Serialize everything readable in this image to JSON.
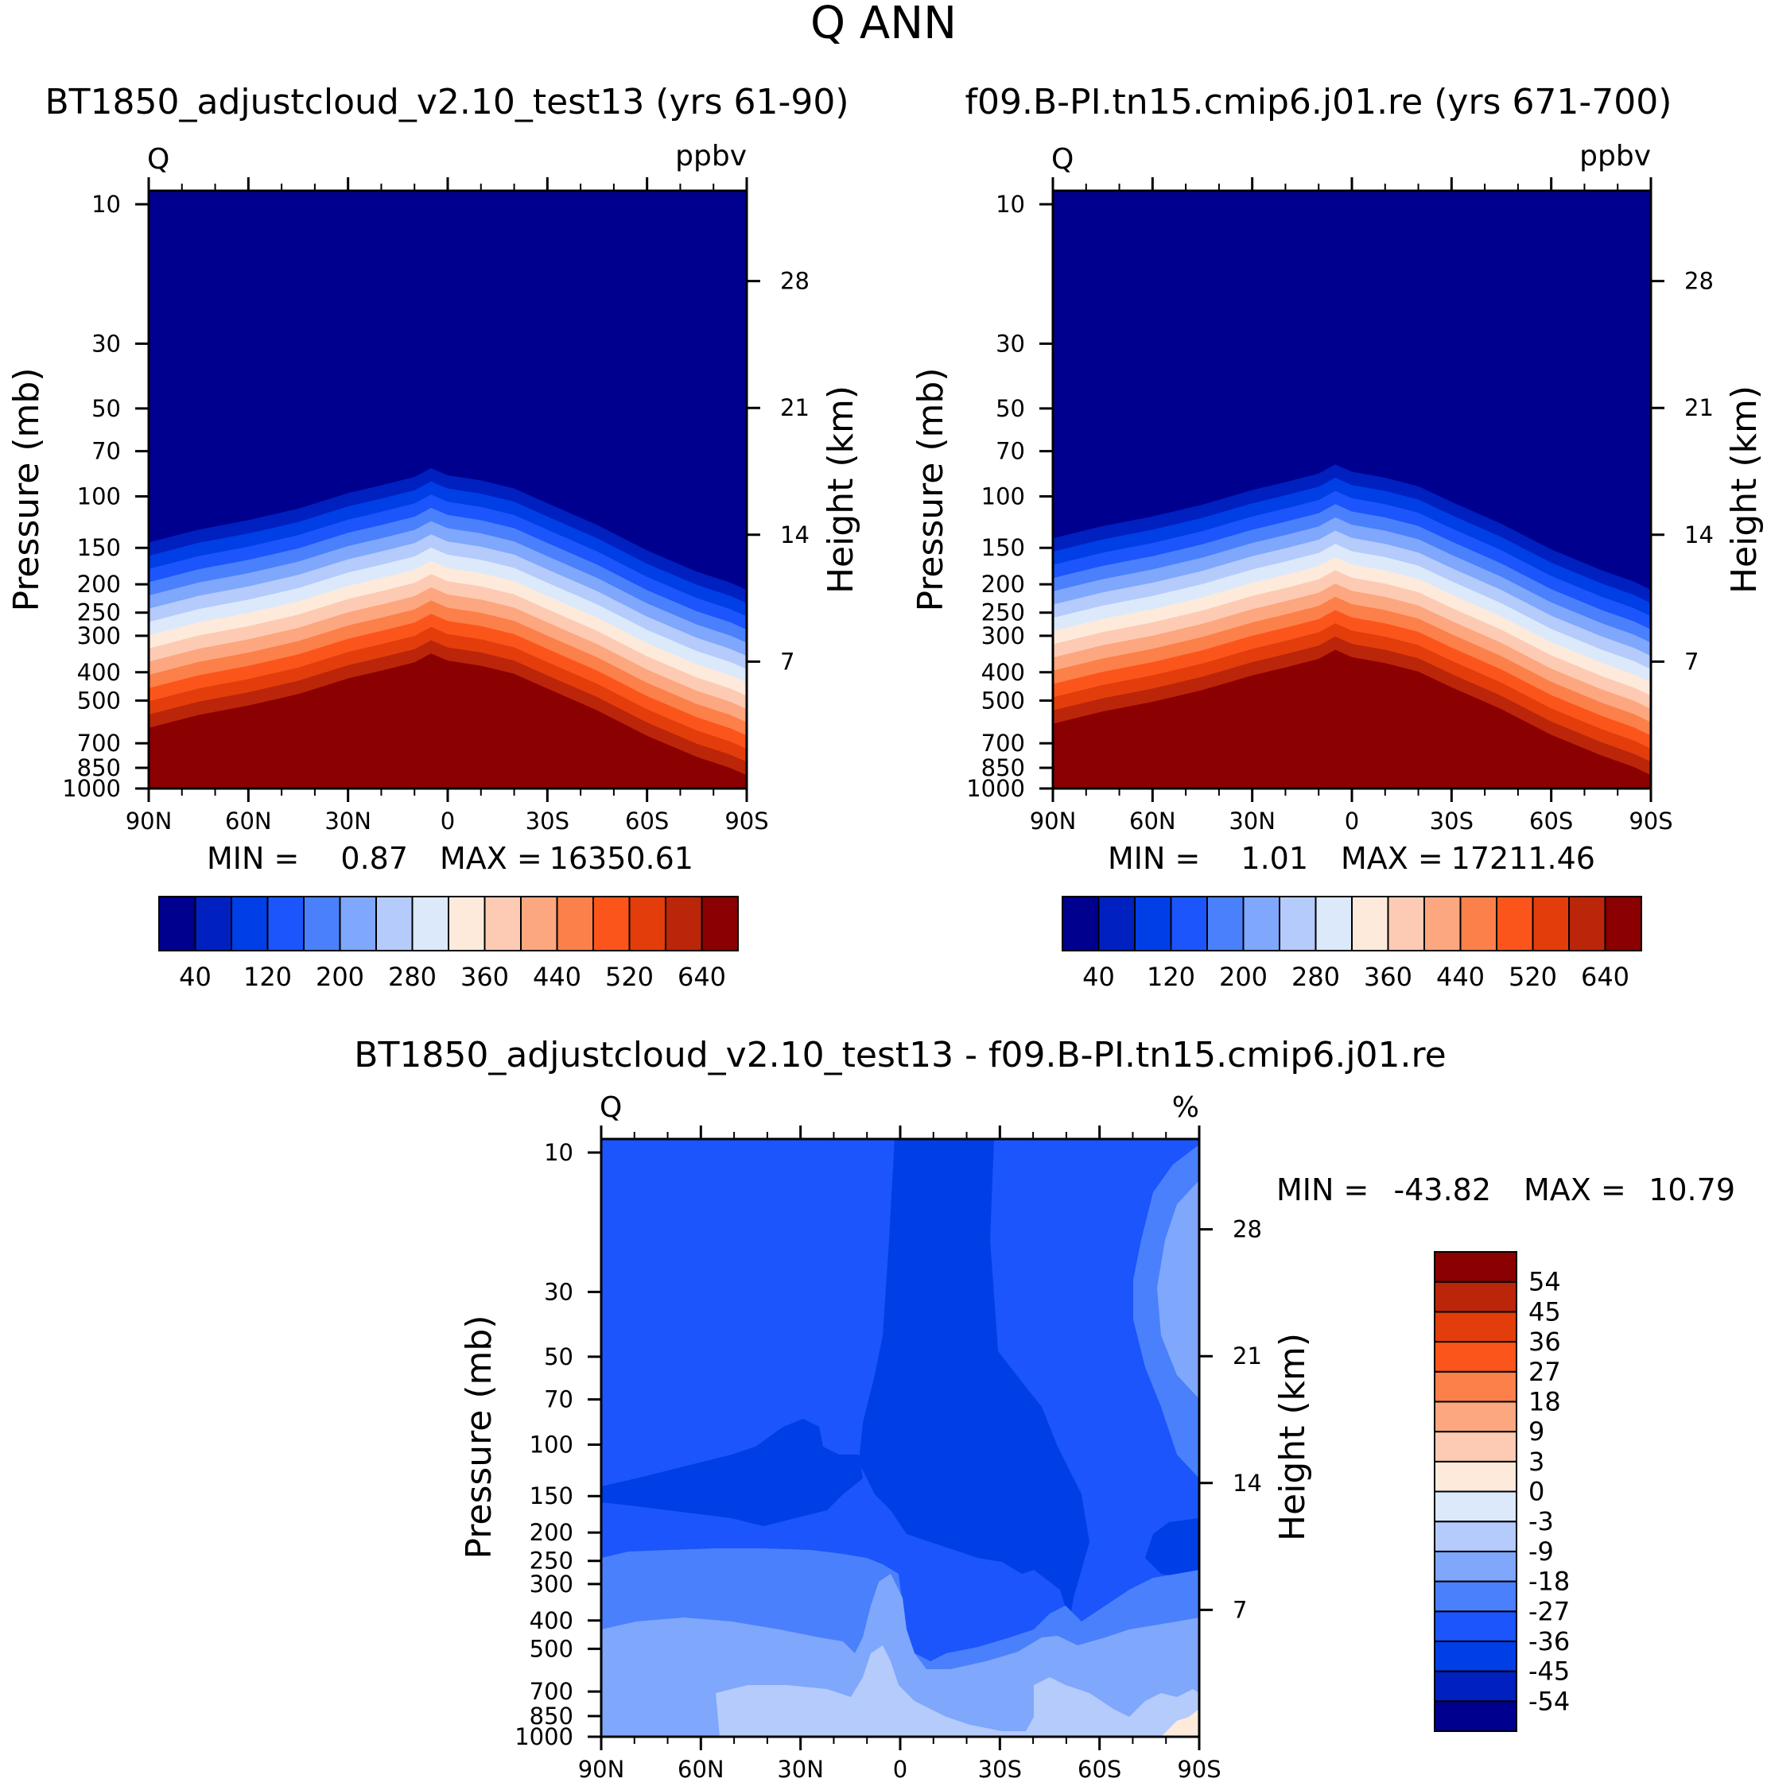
{
  "page_title": "Q ANN",
  "colors": {
    "stops": [
      "#00008f",
      "#0020bf",
      "#003ee6",
      "#1b55fb",
      "#4a80fb",
      "#7fa7fb",
      "#b4cbfb",
      "#dbe9fb",
      "#fdeadb",
      "#fdcbb4",
      "#fca77f",
      "#fc804a",
      "#fc551b",
      "#e33d0c",
      "#bb250a",
      "#8b0000"
    ]
  },
  "chart_data": [
    {
      "type": "contour",
      "title": "BT1850_adjustcloud_v2.10_test13 (yrs 61-90)",
      "corner_left": "Q",
      "corner_right": "ppbv",
      "ylabel": "Pressure (mb)",
      "ylabel_right": "Height (km)",
      "x_ticks": [
        "90N",
        "60N",
        "30N",
        "0",
        "30S",
        "60S",
        "90S"
      ],
      "y_ticks": [
        "10",
        "30",
        "50",
        "70",
        "100",
        "150",
        "200",
        "250",
        "300",
        "400",
        "500",
        "700",
        "850",
        "1000"
      ],
      "y_ticks_right": [
        "28",
        "21",
        "14",
        "7"
      ],
      "xlim": [
        90,
        -90
      ],
      "ylim": [
        1000,
        10
      ],
      "y_scale": "log",
      "min_label": "MIN =",
      "min_value": "0.87",
      "max_label": "MAX =",
      "max_value": "16350.61",
      "colorbar_orientation": "horizontal",
      "colorbar_labels": [
        "40",
        "120",
        "200",
        "280",
        "360",
        "440",
        "520",
        "640"
      ],
      "boundary_lat": [
        90,
        75,
        60,
        45,
        30,
        20,
        10,
        5,
        0,
        -10,
        -20,
        -30,
        -45,
        -60,
        -75,
        -85,
        -90
      ],
      "boundary_p": [
        620,
        560,
        520,
        475,
        420,
        395,
        370,
        345,
        365,
        380,
        405,
        455,
        540,
        660,
        780,
        850,
        900
      ]
    },
    {
      "type": "contour",
      "title": "f09.B-PI.tn15.cmip6.j01.re (yrs 671-700)",
      "corner_left": "Q",
      "corner_right": "ppbv",
      "ylabel": "Pressure (mb)",
      "ylabel_right": "Height (km)",
      "x_ticks": [
        "90N",
        "60N",
        "30N",
        "0",
        "30S",
        "60S",
        "90S"
      ],
      "y_ticks": [
        "10",
        "30",
        "50",
        "70",
        "100",
        "150",
        "200",
        "250",
        "300",
        "400",
        "500",
        "700",
        "850",
        "1000"
      ],
      "y_ticks_right": [
        "28",
        "21",
        "14",
        "7"
      ],
      "xlim": [
        90,
        -90
      ],
      "ylim": [
        1000,
        10
      ],
      "y_scale": "log",
      "min_label": "MIN =",
      "min_value": "1.01",
      "max_label": "MAX =",
      "max_value": "17211.46",
      "colorbar_orientation": "horizontal",
      "colorbar_labels": [
        "40",
        "120",
        "200",
        "280",
        "360",
        "440",
        "520",
        "640"
      ],
      "boundary_lat": [
        90,
        75,
        60,
        45,
        30,
        20,
        10,
        5,
        0,
        -10,
        -20,
        -30,
        -45,
        -60,
        -75,
        -85,
        -90
      ],
      "boundary_p": [
        600,
        545,
        505,
        460,
        410,
        385,
        360,
        335,
        355,
        372,
        398,
        450,
        535,
        655,
        770,
        845,
        900
      ]
    },
    {
      "type": "contour",
      "title": "BT1850_adjustcloud_v2.10_test13 - f09.B-PI.tn15.cmip6.j01.re",
      "corner_left": "Q",
      "corner_right": "%",
      "ylabel": "Pressure (mb)",
      "ylabel_right": "Height (km)",
      "x_ticks": [
        "90N",
        "60N",
        "30N",
        "0",
        "30S",
        "60S",
        "90S"
      ],
      "y_ticks": [
        "10",
        "30",
        "50",
        "70",
        "100",
        "150",
        "200",
        "250",
        "300",
        "400",
        "500",
        "700",
        "850",
        "1000"
      ],
      "y_ticks_right": [
        "28",
        "21",
        "14",
        "7"
      ],
      "xlim": [
        90,
        -90
      ],
      "ylim": [
        1000,
        10
      ],
      "y_scale": "log",
      "min_label": "MIN =",
      "min_value": "-43.82",
      "max_label": "MAX =",
      "max_value": "10.79",
      "colorbar_orientation": "vertical",
      "colorbar_labels": [
        "54",
        "45",
        "36",
        "27",
        "18",
        "9",
        "3",
        "0",
        "-3",
        "-9",
        "-18",
        "-27",
        "-36",
        "-45",
        "-54"
      ]
    }
  ]
}
